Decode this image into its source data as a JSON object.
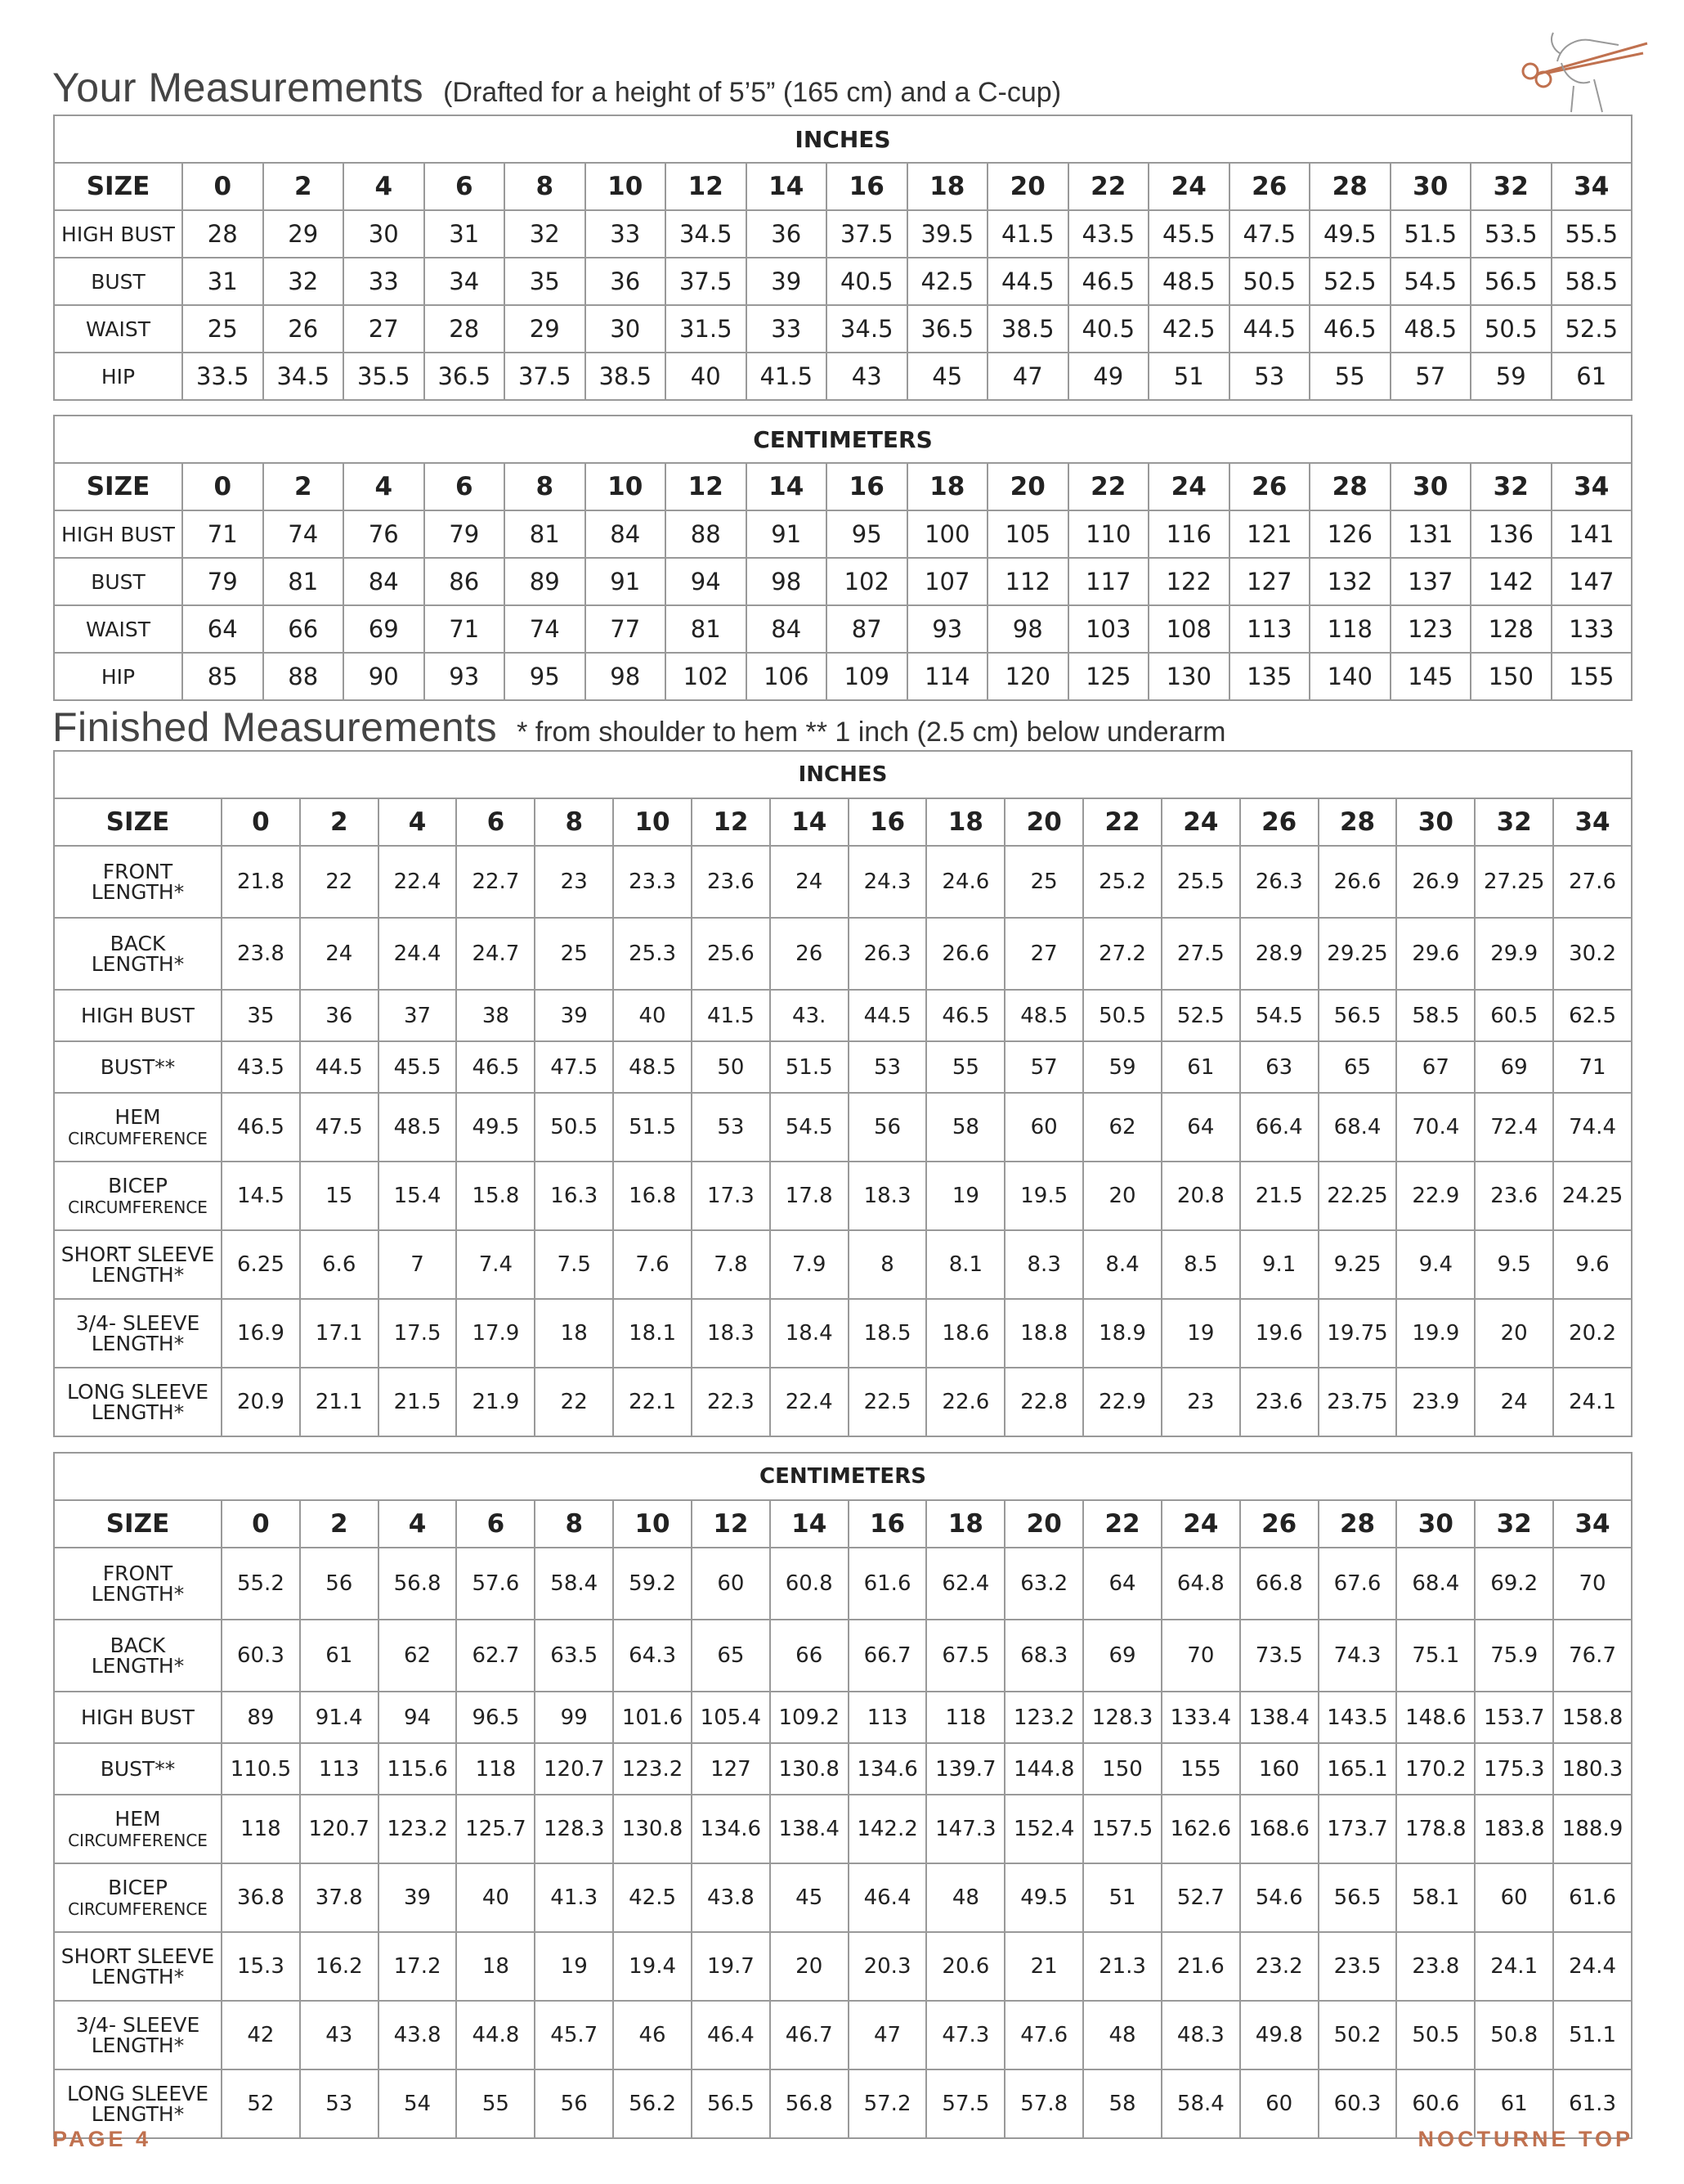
{
  "sections": [
    {
      "title": "Your Measurements",
      "note": "(Drafted for a height of 5’5” (165 cm) and a C-cup)",
      "tables": [
        {
          "unit": "INCHES",
          "header": [
            "SIZE",
            "0",
            "2",
            "4",
            "6",
            "8",
            "10",
            "12",
            "14",
            "16",
            "18",
            "20",
            "22",
            "24",
            "26",
            "28",
            "30",
            "32",
            "34"
          ],
          "rows": [
            {
              "label": [
                "HIGH BUST"
              ],
              "values": [
                "28",
                "29",
                "30",
                "31",
                "32",
                "33",
                "34.5",
                "36",
                "37.5",
                "39.5",
                "41.5",
                "43.5",
                "45.5",
                "47.5",
                "49.5",
                "51.5",
                "53.5",
                "55.5"
              ]
            },
            {
              "label": [
                "BUST"
              ],
              "values": [
                "31",
                "32",
                "33",
                "34",
                "35",
                "36",
                "37.5",
                "39",
                "40.5",
                "42.5",
                "44.5",
                "46.5",
                "48.5",
                "50.5",
                "52.5",
                "54.5",
                "56.5",
                "58.5"
              ]
            },
            {
              "label": [
                "WAIST"
              ],
              "values": [
                "25",
                "26",
                "27",
                "28",
                "29",
                "30",
                "31.5",
                "33",
                "34.5",
                "36.5",
                "38.5",
                "40.5",
                "42.5",
                "44.5",
                "46.5",
                "48.5",
                "50.5",
                "52.5"
              ]
            },
            {
              "label": [
                "HIP"
              ],
              "values": [
                "33.5",
                "34.5",
                "35.5",
                "36.5",
                "37.5",
                "38.5",
                "40",
                "41.5",
                "43",
                "45",
                "47",
                "49",
                "51",
                "53",
                "55",
                "57",
                "59",
                "61"
              ]
            }
          ]
        },
        {
          "unit": "CENTIMETERS",
          "header": [
            "SIZE",
            "0",
            "2",
            "4",
            "6",
            "8",
            "10",
            "12",
            "14",
            "16",
            "18",
            "20",
            "22",
            "24",
            "26",
            "28",
            "30",
            "32",
            "34"
          ],
          "rows": [
            {
              "label": [
                "HIGH BUST"
              ],
              "values": [
                "71",
                "74",
                "76",
                "79",
                "81",
                "84",
                "88",
                "91",
                "95",
                "100",
                "105",
                "110",
                "116",
                "121",
                "126",
                "131",
                "136",
                "141"
              ]
            },
            {
              "label": [
                "BUST"
              ],
              "values": [
                "79",
                "81",
                "84",
                "86",
                "89",
                "91",
                "94",
                "98",
                "102",
                "107",
                "112",
                "117",
                "122",
                "127",
                "132",
                "137",
                "142",
                "147"
              ]
            },
            {
              "label": [
                "WAIST"
              ],
              "values": [
                "64",
                "66",
                "69",
                "71",
                "74",
                "77",
                "81",
                "84",
                "87",
                "93",
                "98",
                "103",
                "108",
                "113",
                "118",
                "123",
                "128",
                "133"
              ]
            },
            {
              "label": [
                "HIP"
              ],
              "values": [
                "85",
                "88",
                "90",
                "93",
                "95",
                "98",
                "102",
                "106",
                "109",
                "114",
                "120",
                "125",
                "130",
                "135",
                "140",
                "145",
                "150",
                "155"
              ]
            }
          ]
        }
      ]
    },
    {
      "title": "Finished Measurements",
      "note": "* from shoulder to hem   ** 1 inch (2.5 cm) below underarm",
      "tables": [
        {
          "unit": "INCHES",
          "header": [
            "SIZE",
            "0",
            "2",
            "4",
            "6",
            "8",
            "10",
            "12",
            "14",
            "16",
            "18",
            "20",
            "22",
            "24",
            "26",
            "28",
            "30",
            "32",
            "34"
          ],
          "rows": [
            {
              "label": [
                "FRONT",
                "LENGTH*"
              ],
              "values": [
                "21.8",
                "22",
                "22.4",
                "22.7",
                "23",
                "23.3",
                "23.6",
                "24",
                "24.3",
                "24.6",
                "25",
                "25.2",
                "25.5",
                "26.3",
                "26.6",
                "26.9",
                "27.25",
                "27.6"
              ]
            },
            {
              "label": [
                "BACK",
                "LENGTH*"
              ],
              "values": [
                "23.8",
                "24",
                "24.4",
                "24.7",
                "25",
                "25.3",
                "25.6",
                "26",
                "26.3",
                "26.6",
                "27",
                "27.2",
                "27.5",
                "28.9",
                "29.25",
                "29.6",
                "29.9",
                "30.2"
              ]
            },
            {
              "label": [
                "HIGH BUST"
              ],
              "values": [
                "35",
                "36",
                "37",
                "38",
                "39",
                "40",
                "41.5",
                "43.",
                "44.5",
                "46.5",
                "48.5",
                "50.5",
                "52.5",
                "54.5",
                "56.5",
                "58.5",
                "60.5",
                "62.5"
              ]
            },
            {
              "label": [
                "BUST**"
              ],
              "values": [
                "43.5",
                "44.5",
                "45.5",
                "46.5",
                "47.5",
                "48.5",
                "50",
                "51.5",
                "53",
                "55",
                "57",
                "59",
                "61",
                "63",
                "65",
                "67",
                "69",
                "71"
              ]
            },
            {
              "label": [
                "HEM",
                "CIRCUMFERENCE"
              ],
              "values": [
                "46.5",
                "47.5",
                "48.5",
                "49.5",
                "50.5",
                "51.5",
                "53",
                "54.5",
                "56",
                "58",
                "60",
                "62",
                "64",
                "66.4",
                "68.4",
                "70.4",
                "72.4",
                "74.4"
              ]
            },
            {
              "label": [
                "BICEP",
                "CIRCUMFERENCE"
              ],
              "values": [
                "14.5",
                "15",
                "15.4",
                "15.8",
                "16.3",
                "16.8",
                "17.3",
                "17.8",
                "18.3",
                "19",
                "19.5",
                "20",
                "20.8",
                "21.5",
                "22.25",
                "22.9",
                "23.6",
                "24.25"
              ]
            },
            {
              "label": [
                "SHORT SLEEVE",
                "LENGTH*"
              ],
              "values": [
                "6.25",
                "6.6",
                "7",
                "7.4",
                "7.5",
                "7.6",
                "7.8",
                "7.9",
                "8",
                "8.1",
                "8.3",
                "8.4",
                "8.5",
                "9.1",
                "9.25",
                "9.4",
                "9.5",
                "9.6"
              ]
            },
            {
              "label": [
                "3/4- SLEEVE",
                "LENGTH*"
              ],
              "values": [
                "16.9",
                "17.1",
                "17.5",
                "17.9",
                "18",
                "18.1",
                "18.3",
                "18.4",
                "18.5",
                "18.6",
                "18.8",
                "18.9",
                "19",
                "19.6",
                "19.75",
                "19.9",
                "20",
                "20.2"
              ]
            },
            {
              "label": [
                "LONG SLEEVE",
                "LENGTH*"
              ],
              "values": [
                "20.9",
                "21.1",
                "21.5",
                "21.9",
                "22",
                "22.1",
                "22.3",
                "22.4",
                "22.5",
                "22.6",
                "22.8",
                "22.9",
                "23",
                "23.6",
                "23.75",
                "23.9",
                "24",
                "24.1"
              ]
            }
          ]
        },
        {
          "unit": "CENTIMETERS",
          "header": [
            "SIZE",
            "0",
            "2",
            "4",
            "6",
            "8",
            "10",
            "12",
            "14",
            "16",
            "18",
            "20",
            "22",
            "24",
            "26",
            "28",
            "30",
            "32",
            "34"
          ],
          "rows": [
            {
              "label": [
                "FRONT",
                "LENGTH*"
              ],
              "values": [
                "55.2",
                "56",
                "56.8",
                "57.6",
                "58.4",
                "59.2",
                "60",
                "60.8",
                "61.6",
                "62.4",
                "63.2",
                "64",
                "64.8",
                "66.8",
                "67.6",
                "68.4",
                "69.2",
                "70"
              ]
            },
            {
              "label": [
                "BACK",
                "LENGTH*"
              ],
              "values": [
                "60.3",
                "61",
                "62",
                "62.7",
                "63.5",
                "64.3",
                "65",
                "66",
                "66.7",
                "67.5",
                "68.3",
                "69",
                "70",
                "73.5",
                "74.3",
                "75.1",
                "75.9",
                "76.7"
              ]
            },
            {
              "label": [
                "HIGH BUST"
              ],
              "values": [
                "89",
                "91.4",
                "94",
                "96.5",
                "99",
                "101.6",
                "105.4",
                "109.2",
                "113",
                "118",
                "123.2",
                "128.3",
                "133.4",
                "138.4",
                "143.5",
                "148.6",
                "153.7",
                "158.8"
              ]
            },
            {
              "label": [
                "BUST**"
              ],
              "values": [
                "110.5",
                "113",
                "115.6",
                "118",
                "120.7",
                "123.2",
                "127",
                "130.8",
                "134.6",
                "139.7",
                "144.8",
                "150",
                "155",
                "160",
                "165.1",
                "170.2",
                "175.3",
                "180.3"
              ]
            },
            {
              "label": [
                "HEM",
                "CIRCUMFERENCE"
              ],
              "values": [
                "118",
                "120.7",
                "123.2",
                "125.7",
                "128.3",
                "130.8",
                "134.6",
                "138.4",
                "142.2",
                "147.3",
                "152.4",
                "157.5",
                "162.6",
                "168.6",
                "173.7",
                "178.8",
                "183.8",
                "188.9"
              ]
            },
            {
              "label": [
                "BICEP",
                "CIRCUMFERENCE"
              ],
              "values": [
                "36.8",
                "37.8",
                "39",
                "40",
                "41.3",
                "42.5",
                "43.8",
                "45",
                "46.4",
                "48",
                "49.5",
                "51",
                "52.7",
                "54.6",
                "56.5",
                "58.1",
                "60",
                "61.6"
              ]
            },
            {
              "label": [
                "SHORT SLEEVE",
                "LENGTH*"
              ],
              "values": [
                "15.3",
                "16.2",
                "17.2",
                "18",
                "19",
                "19.4",
                "19.7",
                "20",
                "20.3",
                "20.6",
                "21",
                "21.3",
                "21.6",
                "23.2",
                "23.5",
                "23.8",
                "24.1",
                "24.4"
              ]
            },
            {
              "label": [
                "3/4- SLEEVE",
                "LENGTH*"
              ],
              "values": [
                "42",
                "43",
                "43.8",
                "44.8",
                "45.7",
                "46",
                "46.4",
                "46.7",
                "47",
                "47.3",
                "47.6",
                "48",
                "48.3",
                "49.8",
                "50.2",
                "50.5",
                "50.8",
                "51.1"
              ]
            },
            {
              "label": [
                "LONG SLEEVE",
                "LENGTH*"
              ],
              "values": [
                "52",
                "53",
                "54",
                "55",
                "56",
                "56.2",
                "56.5",
                "56.8",
                "57.2",
                "57.5",
                "57.8",
                "58",
                "58.4",
                "60",
                "60.3",
                "60.6",
                "61",
                "61.3"
              ]
            }
          ]
        }
      ]
    }
  ],
  "footer": {
    "left": "PAGE 4",
    "right": "NOCTURNE TOP"
  }
}
